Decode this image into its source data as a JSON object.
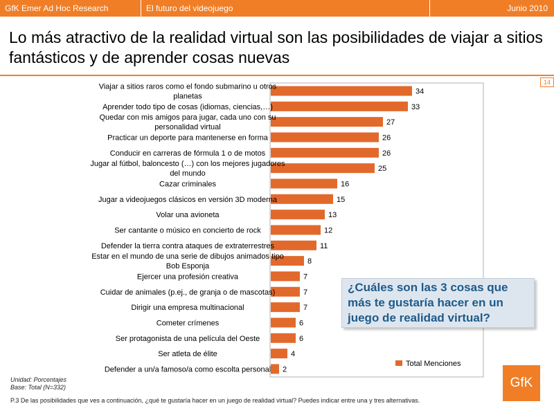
{
  "header": {
    "left": "GfK Emer Ad Hoc Research",
    "center": "El futuro del videojuego",
    "right": "Junio 2010"
  },
  "title": "Lo más atractivo de la realidad virtual son las posibilidades de viajar a sitios fantásticos y de aprender cosas nuevas",
  "page_number": "14",
  "question_box": "¿Cuáles son las 3 cosas que más te gustaría hacer en un juego de realidad virtual?",
  "unit_note": [
    "Unidad: Porcentajes",
    "Base: Total (N=332)"
  ],
  "footnote": "P.3 De las posibilidades que ves a continuación, ¿qué te gustaría hacer en un juego de realidad virtual? Puedes indicar entre una y tres alternativas.",
  "logo": "GfK",
  "colors": {
    "accent": "#f07e26",
    "bar": "#e2692c",
    "question_text": "#1f5a89",
    "question_bg": "#dde6ef"
  },
  "chart_data": {
    "type": "bar",
    "orientation": "horizontal",
    "categories": [
      [
        "Viajar a sitios raros como el fondo submarino u otros",
        "planetas"
      ],
      [
        "Aprender todo tipo de cosas (idiomas, ciencias,…)"
      ],
      [
        "Quedar con mis amigos para jugar, cada uno con su",
        "personalidad virtual"
      ],
      [
        "Practicar un deporte para mantenerse en forma"
      ],
      [
        "Conducir en carreras de fórmula 1 o de motos"
      ],
      [
        "Jugar al fútbol, baloncesto (…) con los mejores jugadores",
        "del mundo"
      ],
      [
        "Cazar criminales"
      ],
      [
        "Jugar a videojuegos clásicos en versión 3D moderna"
      ],
      [
        "Volar una avioneta"
      ],
      [
        "Ser cantante o músico en concierto de rock"
      ],
      [
        "Defender la tierra contra ataques de extraterrestres"
      ],
      [
        "Estar en el mundo de una serie de dibujos animados tipo",
        "Bob Esponja"
      ],
      [
        "Ejercer una profesión creativa"
      ],
      [
        "Cuidar de animales (p.ej., de granja o de mascotas)"
      ],
      [
        "Dirigir una empresa multinacional"
      ],
      [
        "Cometer crímenes"
      ],
      [
        "Ser protagonista de una película del Oeste"
      ],
      [
        "Ser atleta de élite"
      ],
      [
        "Defender a un/a famoso/a como escolta personal"
      ]
    ],
    "series": [
      {
        "name": "Total Menciones",
        "values": [
          34,
          33,
          27,
          26,
          26,
          25,
          16,
          15,
          13,
          12,
          11,
          8,
          7,
          7,
          7,
          6,
          6,
          4,
          2
        ]
      }
    ],
    "xlim": [
      0,
      60
    ],
    "legend_position": "bottom-right"
  }
}
